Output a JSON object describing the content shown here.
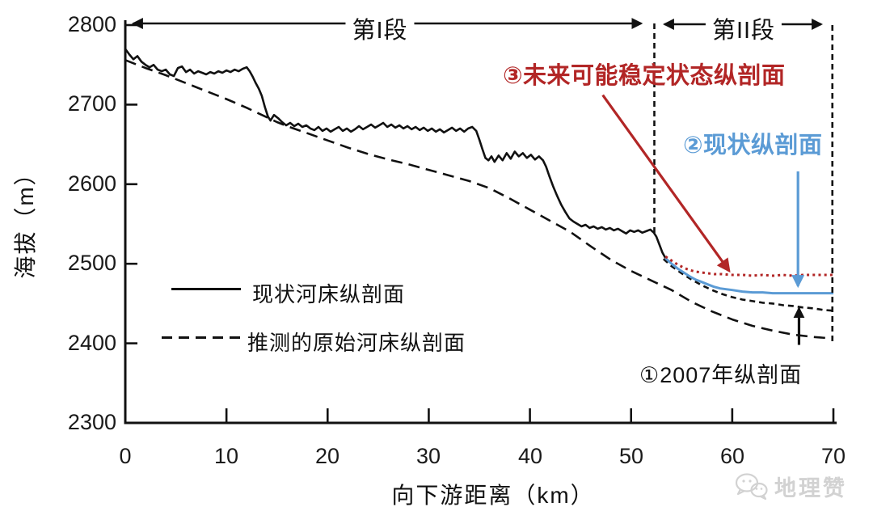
{
  "sections": {
    "section1": "第I段",
    "section2": "第II段"
  },
  "axes": {
    "y_label": "海拔（m）",
    "x_label": "向下游距离（km）",
    "y_tick_labels": [
      "2800",
      "2700",
      "2600",
      "2500",
      "2400",
      "2300"
    ],
    "x_tick_labels": [
      "0",
      "10",
      "20",
      "30",
      "40",
      "50",
      "60",
      "70"
    ]
  },
  "annotations_text": {
    "future": "③未来可能稳定状态纵剖面",
    "current": "②现状纵剖面",
    "y2007": "①2007年纵剖面"
  },
  "legend": [
    {
      "label": "现状河床纵剖面",
      "style": "solid"
    },
    {
      "label": "推测的原始河床纵剖面",
      "style": "long-dash"
    }
  ],
  "watermark": {
    "icon": "wechat-logo-icon",
    "text": "地理赞"
  },
  "colors": {
    "ink": "#111111",
    "red": "#b22626",
    "blue": "#5b9bd5",
    "watermark": "#d2d2d2"
  },
  "chart_data": {
    "type": "line",
    "title": "",
    "xlabel": "向下游距离（km）",
    "ylabel": "海拔（m）",
    "xlim": [
      0,
      70
    ],
    "ylim": [
      2300,
      2800
    ],
    "x_ticks": [
      0,
      10,
      20,
      30,
      40,
      50,
      60,
      70
    ],
    "y_ticks": [
      2300,
      2400,
      2500,
      2600,
      2700,
      2800
    ],
    "grid": false,
    "legend_position": "inside-left-bottom",
    "series": [
      {
        "id": "current_riverbed",
        "name": "现状河床纵剖面",
        "color": "#111111",
        "style": "solid",
        "points": [
          [
            0,
            2770
          ],
          [
            0.4,
            2763
          ],
          [
            0.8,
            2757
          ],
          [
            1.2,
            2761
          ],
          [
            1.6,
            2754
          ],
          [
            2,
            2750
          ],
          [
            2.4,
            2747
          ],
          [
            2.8,
            2750
          ],
          [
            3.2,
            2744
          ],
          [
            3.6,
            2742
          ],
          [
            4,
            2744
          ],
          [
            4.4,
            2738
          ],
          [
            4.8,
            2736
          ],
          [
            5.2,
            2746
          ],
          [
            5.6,
            2748
          ],
          [
            6,
            2741
          ],
          [
            6.4,
            2744
          ],
          [
            6.8,
            2739
          ],
          [
            7.2,
            2742
          ],
          [
            7.6,
            2740
          ],
          [
            8,
            2738
          ],
          [
            8.4,
            2741
          ],
          [
            8.8,
            2739
          ],
          [
            9.2,
            2742
          ],
          [
            9.6,
            2740
          ],
          [
            10,
            2743
          ],
          [
            10.4,
            2741
          ],
          [
            10.8,
            2744
          ],
          [
            11.2,
            2742
          ],
          [
            11.6,
            2745
          ],
          [
            12,
            2747
          ],
          [
            12.3,
            2742
          ],
          [
            12.6,
            2735
          ],
          [
            12.9,
            2727
          ],
          [
            13.2,
            2720
          ],
          [
            13.5,
            2711
          ],
          [
            13.8,
            2697
          ],
          [
            14.1,
            2685
          ],
          [
            14.35,
            2680
          ],
          [
            14.7,
            2687
          ],
          [
            15.1,
            2683
          ],
          [
            15.5,
            2678
          ],
          [
            15.9,
            2674
          ],
          [
            16.3,
            2677
          ],
          [
            16.7,
            2673
          ],
          [
            17.1,
            2676
          ],
          [
            17.5,
            2672
          ],
          [
            17.9,
            2674
          ],
          [
            18.3,
            2670
          ],
          [
            18.7,
            2668
          ],
          [
            19.1,
            2672
          ],
          [
            19.5,
            2667
          ],
          [
            19.9,
            2670
          ],
          [
            20.3,
            2666
          ],
          [
            20.7,
            2669
          ],
          [
            21.1,
            2672
          ],
          [
            21.5,
            2667
          ],
          [
            21.9,
            2670
          ],
          [
            22.3,
            2666
          ],
          [
            22.7,
            2669
          ],
          [
            23.1,
            2673
          ],
          [
            23.5,
            2669
          ],
          [
            23.9,
            2672
          ],
          [
            24.3,
            2675
          ],
          [
            24.7,
            2671
          ],
          [
            25.1,
            2674
          ],
          [
            25.5,
            2677
          ],
          [
            25.9,
            2672
          ],
          [
            26.3,
            2675
          ],
          [
            26.7,
            2671
          ],
          [
            27.1,
            2674
          ],
          [
            27.5,
            2670
          ],
          [
            27.9,
            2673
          ],
          [
            28.3,
            2669
          ],
          [
            28.7,
            2672
          ],
          [
            29.1,
            2668
          ],
          [
            29.5,
            2671
          ],
          [
            29.9,
            2667
          ],
          [
            30.3,
            2670
          ],
          [
            30.7,
            2666
          ],
          [
            31.1,
            2669
          ],
          [
            31.5,
            2665
          ],
          [
            31.9,
            2668
          ],
          [
            32.3,
            2671
          ],
          [
            32.7,
            2667
          ],
          [
            33.1,
            2670
          ],
          [
            33.5,
            2666
          ],
          [
            33.9,
            2670
          ],
          [
            34.3,
            2672
          ],
          [
            34.7,
            2667
          ],
          [
            35,
            2656
          ],
          [
            35.3,
            2644
          ],
          [
            35.6,
            2633
          ],
          [
            35.9,
            2630
          ],
          [
            36.2,
            2635
          ],
          [
            36.5,
            2628
          ],
          [
            36.9,
            2636
          ],
          [
            37.3,
            2630
          ],
          [
            37.7,
            2639
          ],
          [
            38.1,
            2632
          ],
          [
            38.5,
            2641
          ],
          [
            38.9,
            2635
          ],
          [
            39.3,
            2639
          ],
          [
            39.7,
            2633
          ],
          [
            40.1,
            2637
          ],
          [
            40.5,
            2631
          ],
          [
            40.9,
            2635
          ],
          [
            41.3,
            2630
          ],
          [
            41.6,
            2622
          ],
          [
            41.9,
            2611
          ],
          [
            42.3,
            2597
          ],
          [
            42.7,
            2585
          ],
          [
            43.1,
            2574
          ],
          [
            43.5,
            2565
          ],
          [
            43.9,
            2557
          ],
          [
            44.3,
            2553
          ],
          [
            44.7,
            2550
          ],
          [
            45.1,
            2547
          ],
          [
            45.5,
            2549
          ],
          [
            45.9,
            2545
          ],
          [
            46.3,
            2547
          ],
          [
            46.7,
            2544
          ],
          [
            47.1,
            2546
          ],
          [
            47.5,
            2543
          ],
          [
            47.9,
            2545
          ],
          [
            48.3,
            2542
          ],
          [
            48.7,
            2544
          ],
          [
            49.1,
            2541
          ],
          [
            49.5,
            2538
          ],
          [
            49.9,
            2542
          ],
          [
            50.3,
            2540
          ],
          [
            50.7,
            2542
          ],
          [
            51.1,
            2539
          ],
          [
            51.5,
            2541
          ],
          [
            51.9,
            2543
          ],
          [
            52.25,
            2539
          ],
          [
            52.5,
            2534
          ],
          [
            52.8,
            2524
          ],
          [
            53.1,
            2514
          ],
          [
            53.4,
            2507
          ]
        ]
      },
      {
        "id": "original_riverbed",
        "name": "推测的原始河床纵剖面",
        "color": "#111111",
        "style": "long-dash",
        "points": [
          [
            0,
            2756
          ],
          [
            2,
            2746
          ],
          [
            4,
            2737
          ],
          [
            6,
            2727
          ],
          [
            8,
            2717
          ],
          [
            10,
            2707
          ],
          [
            12,
            2696
          ],
          [
            14,
            2684
          ],
          [
            15,
            2678
          ],
          [
            16,
            2673
          ],
          [
            18,
            2664
          ],
          [
            20,
            2655
          ],
          [
            22,
            2646
          ],
          [
            24,
            2638
          ],
          [
            26,
            2631
          ],
          [
            28,
            2625
          ],
          [
            30,
            2618
          ],
          [
            32,
            2611
          ],
          [
            34,
            2604
          ],
          [
            36,
            2595
          ],
          [
            38,
            2582
          ],
          [
            40,
            2568
          ],
          [
            42,
            2554
          ],
          [
            44,
            2540
          ],
          [
            46,
            2522
          ],
          [
            48,
            2505
          ],
          [
            50,
            2491
          ],
          [
            52,
            2479
          ],
          [
            54,
            2467
          ],
          [
            56,
            2452
          ],
          [
            58,
            2440
          ],
          [
            60,
            2430
          ],
          [
            62,
            2422
          ],
          [
            64,
            2416
          ],
          [
            66,
            2411
          ],
          [
            68,
            2408
          ],
          [
            70,
            2406
          ]
        ]
      },
      {
        "id": "profile_2007",
        "name": "①2007年纵剖面",
        "color": "#111111",
        "style": "short-dash",
        "points": [
          [
            53.2,
            2506
          ],
          [
            54,
            2497
          ],
          [
            55,
            2488
          ],
          [
            56,
            2480
          ],
          [
            57,
            2473
          ],
          [
            58,
            2467
          ],
          [
            59,
            2462
          ],
          [
            60,
            2458
          ],
          [
            61,
            2455
          ],
          [
            62,
            2453
          ],
          [
            63,
            2451
          ],
          [
            64,
            2450
          ],
          [
            65,
            2448
          ],
          [
            66,
            2447
          ],
          [
            67,
            2445
          ],
          [
            68,
            2444
          ],
          [
            69,
            2442
          ],
          [
            70,
            2441
          ]
        ]
      },
      {
        "id": "current_profile",
        "name": "②现状纵剖面",
        "color": "#5b9bd5",
        "style": "solid",
        "points": [
          [
            53.4,
            2507
          ],
          [
            54,
            2500
          ],
          [
            54.6,
            2494
          ],
          [
            55.2,
            2489
          ],
          [
            55.8,
            2484
          ],
          [
            56.4,
            2480
          ],
          [
            57,
            2477
          ],
          [
            57.6,
            2474
          ],
          [
            58.2,
            2471
          ],
          [
            58.8,
            2469
          ],
          [
            59.4,
            2468
          ],
          [
            60,
            2467
          ],
          [
            61,
            2465
          ],
          [
            62,
            2464
          ],
          [
            63,
            2464
          ],
          [
            64,
            2463
          ],
          [
            66,
            2463
          ],
          [
            68,
            2463
          ],
          [
            70,
            2463
          ]
        ]
      },
      {
        "id": "future_stable",
        "name": "③未来可能稳定状态纵剖面",
        "color": "#b22626",
        "style": "dotted",
        "points": [
          [
            53.4,
            2509
          ],
          [
            54,
            2504
          ],
          [
            54.6,
            2499
          ],
          [
            55.2,
            2495
          ],
          [
            55.8,
            2492
          ],
          [
            56.4,
            2490
          ],
          [
            57,
            2489
          ],
          [
            57.6,
            2488
          ],
          [
            58.2,
            2487
          ],
          [
            59,
            2487
          ],
          [
            60,
            2486
          ],
          [
            61,
            2486
          ],
          [
            62,
            2485
          ],
          [
            63,
            2486
          ],
          [
            64,
            2485
          ],
          [
            65,
            2486
          ],
          [
            66,
            2485
          ],
          [
            67,
            2486
          ],
          [
            68,
            2486
          ],
          [
            69,
            2486
          ],
          [
            70,
            2486
          ]
        ]
      }
    ],
    "annotations": [
      {
        "id": "section1-span",
        "type": "double-arrow",
        "color": "#111111",
        "width": 2.5,
        "from": [
          0.8,
          2802
        ],
        "to": [
          51,
          2802
        ]
      },
      {
        "id": "section2-span",
        "type": "double-arrow",
        "color": "#111111",
        "width": 2.5,
        "from": [
          53.3,
          2801
        ],
        "to": [
          68.8,
          2801
        ]
      },
      {
        "id": "boundary-1",
        "type": "vline-dashed",
        "color": "#111111",
        "width": 2.6,
        "x": 52.3,
        "from_elev": 2802,
        "to_elev": 2538
      },
      {
        "id": "boundary-2",
        "type": "vline-dashed",
        "color": "#111111",
        "width": 2.6,
        "x": 69.9,
        "from_elev": 2800,
        "to_elev": 2400
      },
      {
        "id": "future-arrow",
        "type": "arrow",
        "color": "#b22626",
        "width": 3.2,
        "from": [
          47.2,
          2712
        ],
        "to": [
          59.7,
          2491
        ]
      },
      {
        "id": "current-arrow",
        "type": "arrow",
        "color": "#5b9bd5",
        "width": 3.2,
        "from": [
          66.5,
          2616
        ],
        "to": [
          66.5,
          2472
        ]
      },
      {
        "id": "arrow-2007",
        "type": "arrow",
        "color": "#111111",
        "width": 3.2,
        "from": [
          66.6,
          2398
        ],
        "to": [
          66.6,
          2444
        ]
      }
    ]
  }
}
